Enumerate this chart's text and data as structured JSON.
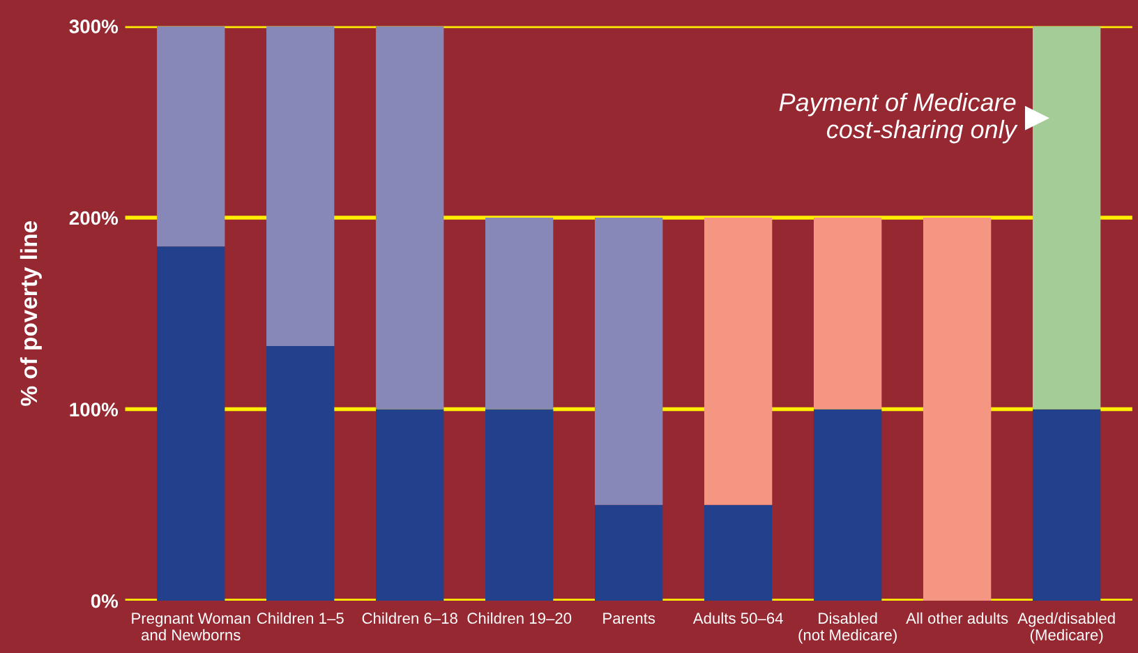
{
  "chart_data": {
    "type": "bar",
    "stacked": true,
    "ylabel": "% of poverty line",
    "categories": [
      "Pregnant Woman\nand Newborns",
      "Children 1–5",
      "Children 6–18",
      "Children 19–20",
      "Parents",
      "Adults 50–64",
      "Disabled\n(not Medicare)",
      "All other adults",
      "Aged/disabled\n(Medicare)"
    ],
    "series": [
      {
        "color": "#23408c",
        "values": [
          185,
          133,
          100,
          100,
          50,
          50,
          100,
          null,
          100
        ]
      },
      {
        "color": "#8788b8",
        "values": [
          115,
          167,
          200,
          100,
          150,
          null,
          null,
          null,
          null
        ]
      },
      {
        "color": "#f59683",
        "values": [
          null,
          null,
          null,
          null,
          null,
          150,
          100,
          200,
          null
        ]
      },
      {
        "color": "#a4cc96",
        "values": [
          null,
          null,
          null,
          null,
          null,
          null,
          null,
          null,
          200
        ]
      }
    ],
    "ylim": [
      0,
      300
    ],
    "yticks": [
      {
        "value": 0,
        "label": "0%"
      },
      {
        "value": 100,
        "label": "100%"
      },
      {
        "value": 200,
        "label": "200%"
      },
      {
        "value": 300,
        "label": "300%"
      }
    ],
    "grid": "y",
    "annotations": [
      "Payment of Medicare\ncost-sharing only"
    ]
  }
}
